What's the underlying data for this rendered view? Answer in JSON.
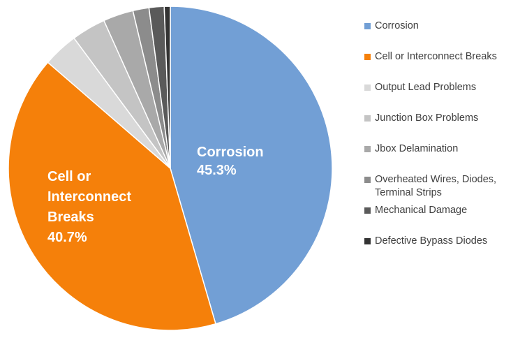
{
  "chart_data": {
    "type": "pie",
    "slices": [
      {
        "name": "Corrosion",
        "value": 45.3,
        "color": "#729fd5",
        "label": [
          "Corrosion",
          "45.3%"
        ]
      },
      {
        "name": "Cell or Interconnect Breaks",
        "value": 40.7,
        "color": "#f5800a",
        "label": [
          "Cell or",
          "Interconnect",
          "Breaks",
          "40.7%"
        ]
      },
      {
        "name": "Output Lead Problems",
        "value": 3.5,
        "color": "#d9d9d9"
      },
      {
        "name": "Junction Box Problems",
        "value": 3.4,
        "color": "#c4c4c4"
      },
      {
        "name": "Jbox Delamination",
        "value": 3.0,
        "color": "#a9a9a9"
      },
      {
        "name": "Overheated Wires, Diodes, Terminal Strips",
        "value": 1.6,
        "color": "#8c8c8c"
      },
      {
        "name": "Mechanical Damage",
        "value": 1.5,
        "color": "#5a5a5a"
      },
      {
        "name": "Defective Bypass Diodes",
        "value": 0.6,
        "color": "#333333"
      }
    ],
    "legend_position": "right"
  }
}
